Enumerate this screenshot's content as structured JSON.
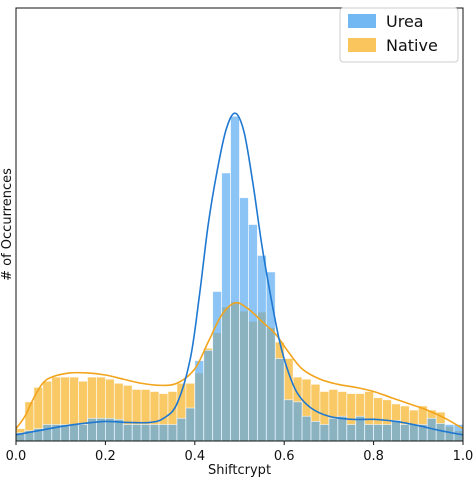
{
  "chart_data": {
    "type": "bar",
    "subtype": "overlaid histogram with KDE curves",
    "xlabel": "Shiftcrypt",
    "ylabel": "# of Occurrences",
    "xlim": [
      0.0,
      1.0
    ],
    "x_ticks": [
      "0.0",
      "0.2",
      "0.4",
      "0.6",
      "0.8",
      "1.0"
    ],
    "ylim": [
      0,
      420
    ],
    "y_ticks_shown": false,
    "grid": false,
    "legend_position": "top-right",
    "bin_width": 0.02,
    "bin_starts": [
      0.0,
      0.02,
      0.04,
      0.06,
      0.08,
      0.1,
      0.12,
      0.14,
      0.16,
      0.18,
      0.2,
      0.22,
      0.24,
      0.26,
      0.28,
      0.3,
      0.32,
      0.34,
      0.36,
      0.38,
      0.4,
      0.42,
      0.44,
      0.46,
      0.48,
      0.5,
      0.52,
      0.54,
      0.56,
      0.58,
      0.6,
      0.62,
      0.64,
      0.66,
      0.68,
      0.7,
      0.72,
      0.74,
      0.76,
      0.78,
      0.8,
      0.82,
      0.84,
      0.86,
      0.88,
      0.9,
      0.92,
      0.94,
      0.96,
      0.98
    ],
    "series": [
      {
        "name": "Urea",
        "color": "#4fa6f0",
        "line_color": "#1f78d1",
        "values": [
          8,
          10,
          12,
          16,
          16,
          16,
          16,
          16,
          22,
          22,
          22,
          21,
          16,
          16,
          16,
          16,
          16,
          16,
          22,
          32,
          78,
          88,
          145,
          260,
          315,
          236,
          210,
          180,
          164,
          80,
          40,
          38,
          24,
          19,
          16,
          22,
          24,
          16,
          24,
          16,
          16,
          16,
          20,
          16,
          16,
          16,
          22,
          17,
          16,
          16
        ],
        "kde": [
          [
            0.0,
            6
          ],
          [
            0.05,
            10
          ],
          [
            0.1,
            14
          ],
          [
            0.15,
            17
          ],
          [
            0.2,
            19
          ],
          [
            0.25,
            18
          ],
          [
            0.3,
            18
          ],
          [
            0.33,
            22
          ],
          [
            0.36,
            36
          ],
          [
            0.39,
            80
          ],
          [
            0.41,
            140
          ],
          [
            0.43,
            210
          ],
          [
            0.45,
            262
          ],
          [
            0.47,
            302
          ],
          [
            0.49,
            318
          ],
          [
            0.51,
            300
          ],
          [
            0.53,
            250
          ],
          [
            0.55,
            190
          ],
          [
            0.57,
            140
          ],
          [
            0.59,
            96
          ],
          [
            0.61,
            66
          ],
          [
            0.63,
            46
          ],
          [
            0.66,
            32
          ],
          [
            0.7,
            24
          ],
          [
            0.75,
            21
          ],
          [
            0.8,
            21
          ],
          [
            0.85,
            19
          ],
          [
            0.9,
            15
          ],
          [
            0.95,
            10
          ],
          [
            1.0,
            6
          ]
        ]
      },
      {
        "name": "Native",
        "color": "#f7b733",
        "line_color": "#f2a41c",
        "values": [
          12,
          38,
          52,
          58,
          62,
          62,
          62,
          58,
          62,
          62,
          60,
          56,
          54,
          50,
          50,
          48,
          46,
          48,
          56,
          56,
          66,
          90,
          105,
          130,
          135,
          126,
          116,
          125,
          110,
          96,
          80,
          62,
          60,
          55,
          48,
          50,
          48,
          46,
          46,
          48,
          42,
          40,
          36,
          34,
          30,
          34,
          30,
          28,
          14,
          10
        ],
        "kde": [
          [
            0.0,
            12
          ],
          [
            0.02,
            24
          ],
          [
            0.04,
            42
          ],
          [
            0.06,
            56
          ],
          [
            0.08,
            62
          ],
          [
            0.12,
            66
          ],
          [
            0.16,
            66
          ],
          [
            0.2,
            64
          ],
          [
            0.24,
            60
          ],
          [
            0.28,
            56
          ],
          [
            0.32,
            54
          ],
          [
            0.36,
            56
          ],
          [
            0.4,
            70
          ],
          [
            0.43,
            96
          ],
          [
            0.46,
            122
          ],
          [
            0.49,
            134
          ],
          [
            0.52,
            128
          ],
          [
            0.55,
            116
          ],
          [
            0.58,
            104
          ],
          [
            0.61,
            86
          ],
          [
            0.64,
            70
          ],
          [
            0.68,
            60
          ],
          [
            0.72,
            55
          ],
          [
            0.76,
            52
          ],
          [
            0.8,
            48
          ],
          [
            0.84,
            42
          ],
          [
            0.88,
            36
          ],
          [
            0.92,
            30
          ],
          [
            0.96,
            22
          ],
          [
            1.0,
            12
          ]
        ]
      }
    ]
  }
}
